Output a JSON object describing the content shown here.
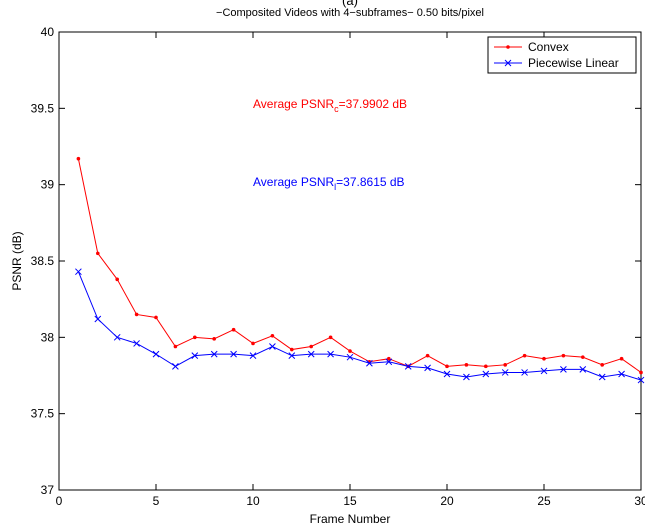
{
  "chart_data": {
    "type": "line",
    "heading": "(a)",
    "title": "−Composited Videos with 4−subframes− 0.50 bits/pixel",
    "x_label": "Frame Number",
    "y_label": "PSNR (dB)",
    "x": [
      1,
      2,
      3,
      4,
      5,
      6,
      7,
      8,
      9,
      10,
      11,
      12,
      13,
      14,
      15,
      16,
      17,
      18,
      19,
      20,
      21,
      22,
      23,
      24,
      25,
      26,
      27,
      28,
      29,
      30
    ],
    "series": [
      {
        "name": "Convex",
        "color": "#ff0000",
        "marker": "dot",
        "values": [
          39.17,
          38.55,
          38.38,
          38.15,
          38.13,
          37.94,
          38.0,
          37.99,
          38.05,
          37.96,
          38.01,
          37.92,
          37.94,
          38.0,
          37.91,
          37.84,
          37.86,
          37.81,
          37.88,
          37.81,
          37.82,
          37.81,
          37.82,
          37.88,
          37.86,
          37.88,
          37.87,
          37.82,
          37.86,
          37.77
        ]
      },
      {
        "name": "Piecewise Linear",
        "color": "#0000ff",
        "marker": "x",
        "values": [
          38.43,
          38.12,
          38.0,
          37.96,
          37.89,
          37.81,
          37.88,
          37.89,
          37.89,
          37.88,
          37.94,
          37.88,
          37.89,
          37.89,
          37.87,
          37.83,
          37.84,
          37.81,
          37.8,
          37.76,
          37.74,
          37.76,
          37.77,
          37.77,
          37.78,
          37.79,
          37.79,
          37.74,
          37.76,
          37.72
        ]
      }
    ],
    "annotations": [
      {
        "color": "#ff0000",
        "text": "Average PSNR",
        "subscript": "c",
        "tail": "=37.9902 dB"
      },
      {
        "color": "#0000ff",
        "text": "Average PSNR",
        "subscript": "l",
        "tail": "=37.8615 dB"
      }
    ],
    "xlim": [
      0,
      30
    ],
    "xticks": [
      0,
      5,
      10,
      15,
      20,
      25,
      30
    ],
    "ylim": [
      37,
      40
    ],
    "yticks": [
      37,
      37.5,
      38,
      38.5,
      39,
      39.5,
      40
    ],
    "grid": false,
    "legend": "top-right"
  }
}
